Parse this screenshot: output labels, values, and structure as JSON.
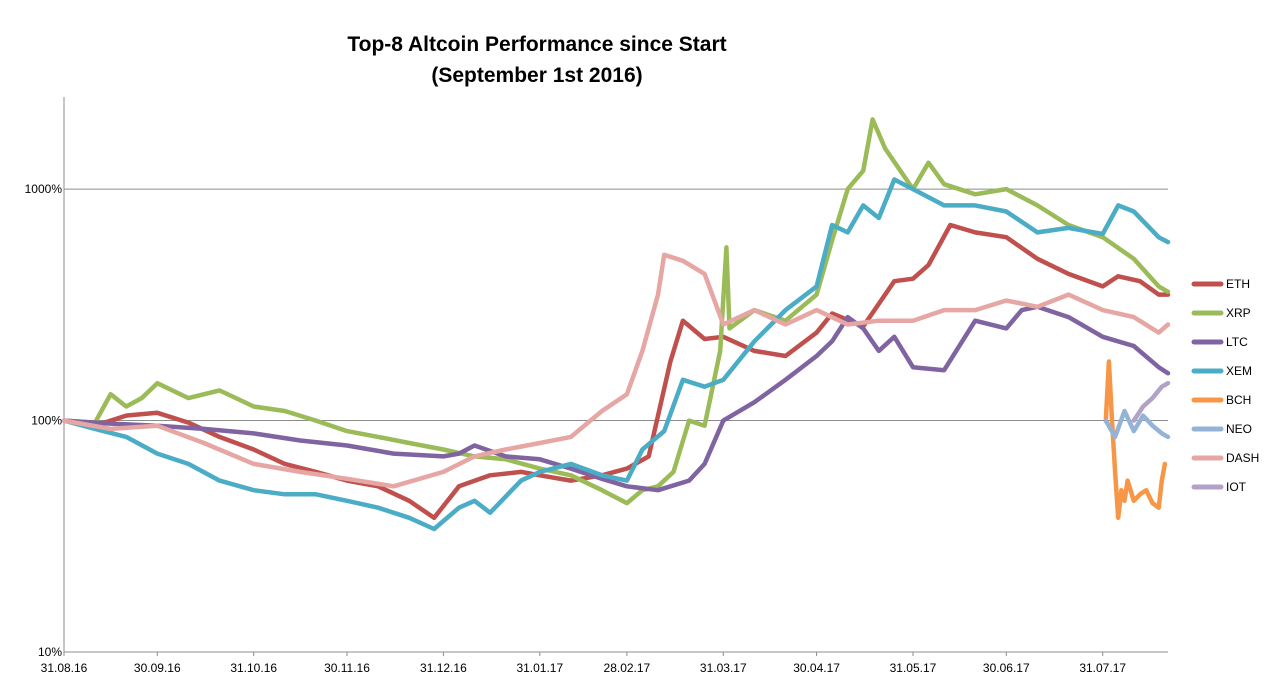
{
  "chart_data": {
    "type": "line",
    "title": "Top-8 Altcoin Performance since Start",
    "subtitle": "(September 1st 2016)",
    "xlabel": "",
    "ylabel": "",
    "y_scale": "log",
    "ylim": [
      10,
      2500
    ],
    "y_ticks": [
      10,
      100,
      1000
    ],
    "y_tick_labels": [
      "10%",
      "100%",
      "1000%"
    ],
    "x_ticks": [
      "31.08.16",
      "30.09.16",
      "31.10.16",
      "30.11.16",
      "31.12.16",
      "31.01.17",
      "28.02.17",
      "31.03.17",
      "30.04.17",
      "31.05.17",
      "30.06.17",
      "31.07.17"
    ],
    "xlim": [
      "2016-08-31",
      "2017-08-21"
    ],
    "grid": "horizontal",
    "legend_position": "right",
    "series": [
      {
        "name": "ETH",
        "color": "#c0504d",
        "points": [
          [
            "2016-08-31",
            100
          ],
          [
            "2016-09-10",
            95
          ],
          [
            "2016-09-20",
            105
          ],
          [
            "2016-09-30",
            108
          ],
          [
            "2016-10-10",
            98
          ],
          [
            "2016-10-20",
            85
          ],
          [
            "2016-10-31",
            75
          ],
          [
            "2016-11-10",
            65
          ],
          [
            "2016-11-20",
            60
          ],
          [
            "2016-11-30",
            55
          ],
          [
            "2016-12-10",
            52
          ],
          [
            "2016-12-20",
            45
          ],
          [
            "2016-12-28",
            38
          ],
          [
            "2017-01-05",
            52
          ],
          [
            "2017-01-15",
            58
          ],
          [
            "2017-01-25",
            60
          ],
          [
            "2017-01-31",
            58
          ],
          [
            "2017-02-10",
            55
          ],
          [
            "2017-02-20",
            58
          ],
          [
            "2017-02-28",
            62
          ],
          [
            "2017-03-07",
            70
          ],
          [
            "2017-03-14",
            180
          ],
          [
            "2017-03-18",
            270
          ],
          [
            "2017-03-25",
            225
          ],
          [
            "2017-03-31",
            230
          ],
          [
            "2017-04-10",
            200
          ],
          [
            "2017-04-20",
            190
          ],
          [
            "2017-04-30",
            240
          ],
          [
            "2017-05-05",
            290
          ],
          [
            "2017-05-15",
            255
          ],
          [
            "2017-05-25",
            400
          ],
          [
            "2017-05-31",
            410
          ],
          [
            "2017-06-05",
            470
          ],
          [
            "2017-06-12",
            700
          ],
          [
            "2017-06-20",
            650
          ],
          [
            "2017-06-30",
            620
          ],
          [
            "2017-07-10",
            500
          ],
          [
            "2017-07-20",
            430
          ],
          [
            "2017-07-31",
            380
          ],
          [
            "2017-08-05",
            420
          ],
          [
            "2017-08-12",
            400
          ],
          [
            "2017-08-18",
            350
          ],
          [
            "2017-08-21",
            350
          ]
        ]
      },
      {
        "name": "XRP",
        "color": "#9bbb59",
        "points": [
          [
            "2016-08-31",
            100
          ],
          [
            "2016-09-10",
            98
          ],
          [
            "2016-09-15",
            130
          ],
          [
            "2016-09-20",
            115
          ],
          [
            "2016-09-25",
            125
          ],
          [
            "2016-09-30",
            145
          ],
          [
            "2016-10-10",
            125
          ],
          [
            "2016-10-20",
            135
          ],
          [
            "2016-10-31",
            115
          ],
          [
            "2016-11-10",
            110
          ],
          [
            "2016-11-20",
            100
          ],
          [
            "2016-11-30",
            90
          ],
          [
            "2016-12-10",
            85
          ],
          [
            "2016-12-20",
            80
          ],
          [
            "2016-12-31",
            75
          ],
          [
            "2017-01-10",
            70
          ],
          [
            "2017-01-20",
            68
          ],
          [
            "2017-01-31",
            62
          ],
          [
            "2017-02-10",
            58
          ],
          [
            "2017-02-20",
            50
          ],
          [
            "2017-02-28",
            44
          ],
          [
            "2017-03-05",
            50
          ],
          [
            "2017-03-10",
            52
          ],
          [
            "2017-03-15",
            60
          ],
          [
            "2017-03-20",
            100
          ],
          [
            "2017-03-25",
            95
          ],
          [
            "2017-03-30",
            200
          ],
          [
            "2017-04-01",
            560
          ],
          [
            "2017-04-02",
            250
          ],
          [
            "2017-04-10",
            300
          ],
          [
            "2017-04-20",
            270
          ],
          [
            "2017-04-30",
            350
          ],
          [
            "2017-05-05",
            600
          ],
          [
            "2017-05-10",
            1000
          ],
          [
            "2017-05-15",
            1200
          ],
          [
            "2017-05-18",
            2000
          ],
          [
            "2017-05-22",
            1500
          ],
          [
            "2017-05-31",
            1000
          ],
          [
            "2017-06-05",
            1300
          ],
          [
            "2017-06-10",
            1050
          ],
          [
            "2017-06-20",
            950
          ],
          [
            "2017-06-30",
            1000
          ],
          [
            "2017-07-10",
            850
          ],
          [
            "2017-07-20",
            700
          ],
          [
            "2017-07-31",
            620
          ],
          [
            "2017-08-10",
            500
          ],
          [
            "2017-08-18",
            380
          ],
          [
            "2017-08-21",
            360
          ]
        ]
      },
      {
        "name": "LTC",
        "color": "#8064a2",
        "points": [
          [
            "2016-08-31",
            100
          ],
          [
            "2016-09-15",
            97
          ],
          [
            "2016-09-30",
            95
          ],
          [
            "2016-10-15",
            92
          ],
          [
            "2016-10-31",
            88
          ],
          [
            "2016-11-15",
            82
          ],
          [
            "2016-11-30",
            78
          ],
          [
            "2016-12-15",
            72
          ],
          [
            "2016-12-31",
            70
          ],
          [
            "2017-01-05",
            72
          ],
          [
            "2017-01-10",
            78
          ],
          [
            "2017-01-20",
            70
          ],
          [
            "2017-01-31",
            68
          ],
          [
            "2017-02-10",
            62
          ],
          [
            "2017-02-20",
            56
          ],
          [
            "2017-02-28",
            52
          ],
          [
            "2017-03-10",
            50
          ],
          [
            "2017-03-20",
            55
          ],
          [
            "2017-03-25",
            65
          ],
          [
            "2017-03-31",
            100
          ],
          [
            "2017-04-10",
            120
          ],
          [
            "2017-04-20",
            150
          ],
          [
            "2017-04-30",
            190
          ],
          [
            "2017-05-05",
            220
          ],
          [
            "2017-05-10",
            280
          ],
          [
            "2017-05-15",
            250
          ],
          [
            "2017-05-20",
            200
          ],
          [
            "2017-05-25",
            230
          ],
          [
            "2017-05-31",
            170
          ],
          [
            "2017-06-10",
            165
          ],
          [
            "2017-06-20",
            270
          ],
          [
            "2017-06-30",
            250
          ],
          [
            "2017-07-05",
            300
          ],
          [
            "2017-07-10",
            310
          ],
          [
            "2017-07-20",
            280
          ],
          [
            "2017-07-31",
            230
          ],
          [
            "2017-08-10",
            210
          ],
          [
            "2017-08-18",
            170
          ],
          [
            "2017-08-21",
            160
          ]
        ]
      },
      {
        "name": "XEM",
        "color": "#4bacc6",
        "points": [
          [
            "2016-08-31",
            100
          ],
          [
            "2016-09-10",
            92
          ],
          [
            "2016-09-20",
            85
          ],
          [
            "2016-09-30",
            72
          ],
          [
            "2016-10-10",
            65
          ],
          [
            "2016-10-20",
            55
          ],
          [
            "2016-10-31",
            50
          ],
          [
            "2016-11-10",
            48
          ],
          [
            "2016-11-20",
            48
          ],
          [
            "2016-11-30",
            45
          ],
          [
            "2016-12-10",
            42
          ],
          [
            "2016-12-20",
            38
          ],
          [
            "2016-12-28",
            34
          ],
          [
            "2017-01-05",
            42
          ],
          [
            "2017-01-10",
            45
          ],
          [
            "2017-01-15",
            40
          ],
          [
            "2017-01-25",
            55
          ],
          [
            "2017-01-31",
            60
          ],
          [
            "2017-02-10",
            65
          ],
          [
            "2017-02-20",
            58
          ],
          [
            "2017-02-28",
            55
          ],
          [
            "2017-03-05",
            75
          ],
          [
            "2017-03-12",
            90
          ],
          [
            "2017-03-18",
            150
          ],
          [
            "2017-03-25",
            140
          ],
          [
            "2017-03-31",
            150
          ],
          [
            "2017-04-10",
            220
          ],
          [
            "2017-04-20",
            300
          ],
          [
            "2017-04-30",
            380
          ],
          [
            "2017-05-05",
            700
          ],
          [
            "2017-05-10",
            650
          ],
          [
            "2017-05-15",
            850
          ],
          [
            "2017-05-20",
            750
          ],
          [
            "2017-05-25",
            1100
          ],
          [
            "2017-05-31",
            1000
          ],
          [
            "2017-06-10",
            850
          ],
          [
            "2017-06-20",
            850
          ],
          [
            "2017-06-30",
            800
          ],
          [
            "2017-07-10",
            650
          ],
          [
            "2017-07-20",
            680
          ],
          [
            "2017-07-31",
            640
          ],
          [
            "2017-08-05",
            850
          ],
          [
            "2017-08-10",
            800
          ],
          [
            "2017-08-18",
            620
          ],
          [
            "2017-08-21",
            590
          ]
        ]
      },
      {
        "name": "BCH",
        "color": "#f79646",
        "points": [
          [
            "2017-08-01",
            100
          ],
          [
            "2017-08-02",
            180
          ],
          [
            "2017-08-03",
            100
          ],
          [
            "2017-08-04",
            60
          ],
          [
            "2017-08-05",
            38
          ],
          [
            "2017-08-06",
            50
          ],
          [
            "2017-08-07",
            45
          ],
          [
            "2017-08-08",
            55
          ],
          [
            "2017-08-10",
            45
          ],
          [
            "2017-08-12",
            48
          ],
          [
            "2017-08-14",
            50
          ],
          [
            "2017-08-16",
            44
          ],
          [
            "2017-08-18",
            42
          ],
          [
            "2017-08-19",
            55
          ],
          [
            "2017-08-20",
            65
          ]
        ]
      },
      {
        "name": "NEO",
        "color": "#95b3d7",
        "points": [
          [
            "2017-08-01",
            100
          ],
          [
            "2017-08-04",
            85
          ],
          [
            "2017-08-07",
            110
          ],
          [
            "2017-08-10",
            90
          ],
          [
            "2017-08-13",
            105
          ],
          [
            "2017-08-16",
            95
          ],
          [
            "2017-08-19",
            88
          ],
          [
            "2017-08-21",
            85
          ]
        ]
      },
      {
        "name": "DASH",
        "color": "#e6a6a4",
        "points": [
          [
            "2016-08-31",
            100
          ],
          [
            "2016-09-15",
            92
          ],
          [
            "2016-09-30",
            95
          ],
          [
            "2016-10-15",
            80
          ],
          [
            "2016-10-31",
            65
          ],
          [
            "2016-11-15",
            60
          ],
          [
            "2016-11-30",
            56
          ],
          [
            "2016-12-15",
            52
          ],
          [
            "2016-12-31",
            60
          ],
          [
            "2017-01-10",
            70
          ],
          [
            "2017-01-20",
            75
          ],
          [
            "2017-01-31",
            80
          ],
          [
            "2017-02-10",
            85
          ],
          [
            "2017-02-20",
            110
          ],
          [
            "2017-02-28",
            130
          ],
          [
            "2017-03-05",
            200
          ],
          [
            "2017-03-10",
            350
          ],
          [
            "2017-03-12",
            520
          ],
          [
            "2017-03-18",
            490
          ],
          [
            "2017-03-25",
            430
          ],
          [
            "2017-03-31",
            260
          ],
          [
            "2017-04-10",
            300
          ],
          [
            "2017-04-20",
            260
          ],
          [
            "2017-04-30",
            300
          ],
          [
            "2017-05-10",
            260
          ],
          [
            "2017-05-20",
            270
          ],
          [
            "2017-05-31",
            270
          ],
          [
            "2017-06-10",
            300
          ],
          [
            "2017-06-20",
            300
          ],
          [
            "2017-06-30",
            330
          ],
          [
            "2017-07-10",
            310
          ],
          [
            "2017-07-20",
            350
          ],
          [
            "2017-07-31",
            300
          ],
          [
            "2017-08-10",
            280
          ],
          [
            "2017-08-18",
            240
          ],
          [
            "2017-08-21",
            260
          ]
        ]
      },
      {
        "name": "IOT",
        "color": "#b2a2c7",
        "points": [
          [
            "2017-08-10",
            100
          ],
          [
            "2017-08-13",
            115
          ],
          [
            "2017-08-16",
            125
          ],
          [
            "2017-08-19",
            140
          ],
          [
            "2017-08-21",
            145
          ]
        ]
      }
    ]
  }
}
